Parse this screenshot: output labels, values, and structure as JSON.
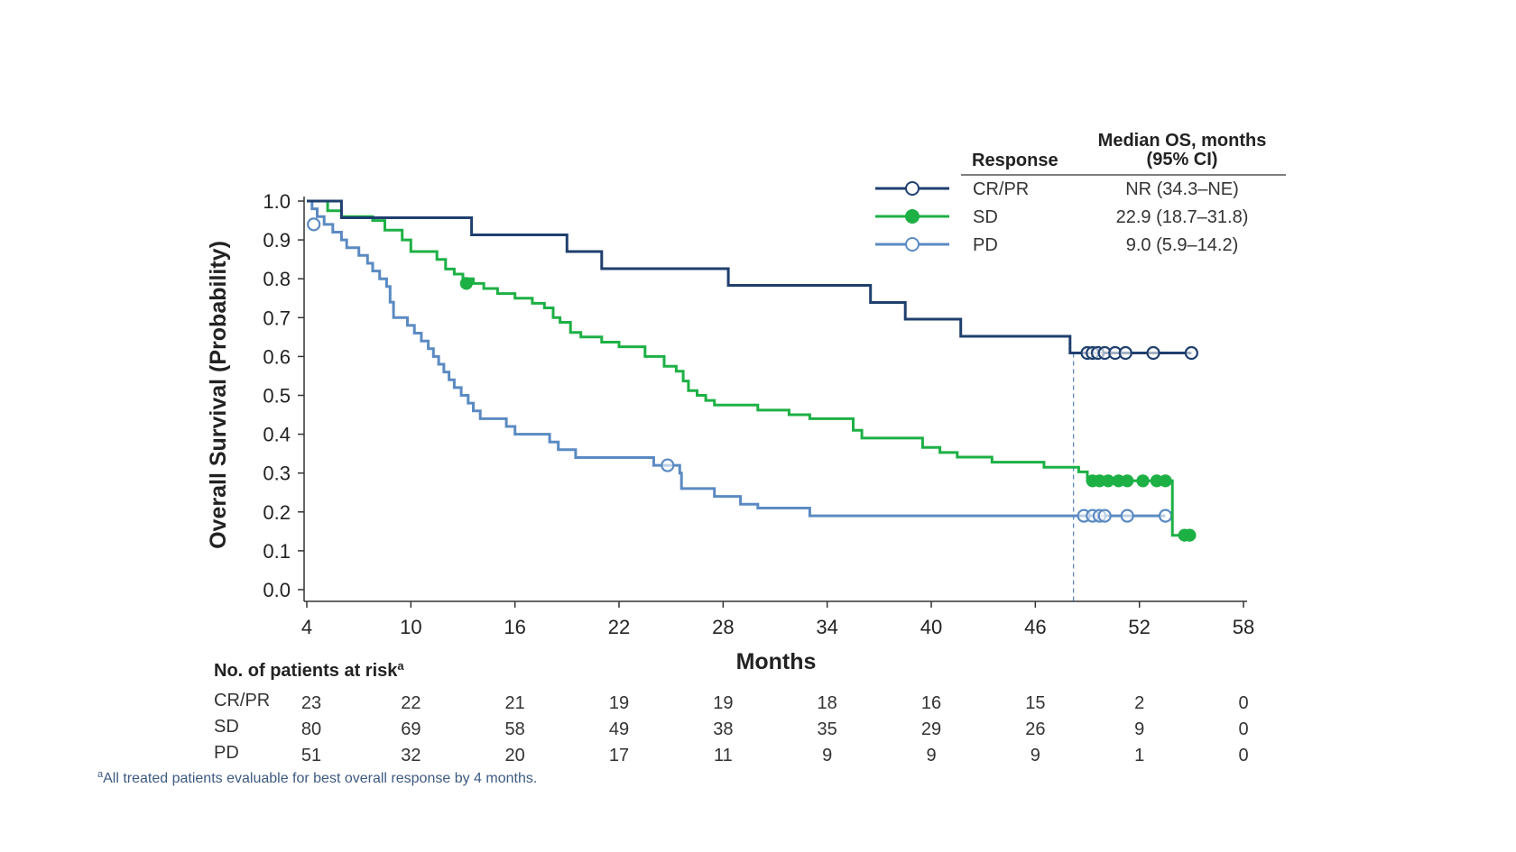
{
  "chart_data": {
    "type": "line",
    "subtype": "kaplan-meier",
    "ylabel": "Overall Survival (Probability)",
    "xlabel": "Months",
    "xlim": [
      4,
      58
    ],
    "ylim": [
      0,
      1
    ],
    "xticks": [
      4,
      10,
      16,
      22,
      28,
      34,
      40,
      46,
      52,
      58
    ],
    "yticks": [
      0.0,
      0.1,
      0.2,
      0.3,
      0.4,
      0.5,
      0.6,
      0.7,
      0.8,
      0.9,
      1.0
    ],
    "reference_line": {
      "x": 48.2,
      "style": "dashed"
    },
    "legend": {
      "placement": "top-right",
      "header_response": "Response",
      "header_median_line1": "Median OS, months",
      "header_median_line2": "(95% CI)"
    },
    "series": [
      {
        "name": "CR/PR",
        "color": "#1f3f6e",
        "marker": "open-circle",
        "median_os": "NR (34.3–NE)",
        "steps": [
          [
            4,
            1.0
          ],
          [
            6,
            0.957
          ],
          [
            13.5,
            0.913
          ],
          [
            19,
            0.87
          ],
          [
            21,
            0.826
          ],
          [
            28.3,
            0.783
          ],
          [
            36.5,
            0.739
          ],
          [
            38.5,
            0.696
          ],
          [
            41.7,
            0.652
          ],
          [
            48,
            0.609
          ],
          [
            55,
            0.609
          ]
        ],
        "censored": [
          [
            49,
            0.609
          ],
          [
            49.3,
            0.609
          ],
          [
            49.6,
            0.609
          ],
          [
            50,
            0.609
          ],
          [
            50.6,
            0.609
          ],
          [
            51.2,
            0.609
          ],
          [
            52.8,
            0.609
          ],
          [
            55,
            0.609
          ]
        ]
      },
      {
        "name": "SD",
        "color": "#1db045",
        "marker": "filled-circle",
        "median_os": "22.9 (18.7–31.8)",
        "steps": [
          [
            4,
            1.0
          ],
          [
            5.2,
            0.975
          ],
          [
            6,
            0.96
          ],
          [
            7.8,
            0.95
          ],
          [
            8.5,
            0.925
          ],
          [
            9.5,
            0.9
          ],
          [
            10,
            0.87
          ],
          [
            11.5,
            0.85
          ],
          [
            12,
            0.825
          ],
          [
            12.5,
            0.812
          ],
          [
            13,
            0.8
          ],
          [
            13.6,
            0.788
          ],
          [
            14.2,
            0.775
          ],
          [
            15,
            0.762
          ],
          [
            16,
            0.75
          ],
          [
            17,
            0.737
          ],
          [
            17.7,
            0.725
          ],
          [
            18.2,
            0.7
          ],
          [
            18.6,
            0.688
          ],
          [
            19.2,
            0.662
          ],
          [
            19.8,
            0.65
          ],
          [
            21,
            0.637
          ],
          [
            22,
            0.625
          ],
          [
            23.5,
            0.6
          ],
          [
            24.6,
            0.575
          ],
          [
            25.3,
            0.562
          ],
          [
            25.7,
            0.537
          ],
          [
            26,
            0.512
          ],
          [
            26.5,
            0.5
          ],
          [
            27,
            0.487
          ],
          [
            27.5,
            0.475
          ],
          [
            30,
            0.462
          ],
          [
            31.8,
            0.45
          ],
          [
            33,
            0.44
          ],
          [
            35.5,
            0.41
          ],
          [
            36,
            0.39
          ],
          [
            39.5,
            0.366
          ],
          [
            40.5,
            0.353
          ],
          [
            41.5,
            0.341
          ],
          [
            43.5,
            0.328
          ],
          [
            46.5,
            0.315
          ],
          [
            48.5,
            0.303
          ],
          [
            49,
            0.28
          ],
          [
            53.8,
            0.28
          ],
          [
            53.9,
            0.14
          ],
          [
            55,
            0.14
          ]
        ],
        "censored": [
          [
            13.2,
            0.788
          ],
          [
            49.3,
            0.28
          ],
          [
            49.7,
            0.28
          ],
          [
            50.2,
            0.28
          ],
          [
            50.8,
            0.28
          ],
          [
            51.3,
            0.28
          ],
          [
            52.2,
            0.28
          ],
          [
            53,
            0.28
          ],
          [
            53.5,
            0.28
          ],
          [
            54.6,
            0.14
          ],
          [
            54.9,
            0.14
          ]
        ]
      },
      {
        "name": "PD",
        "color": "#5b8ac2",
        "marker": "open-circle",
        "median_os": "9.0 (5.9–14.2)",
        "steps": [
          [
            4,
            1.0
          ],
          [
            4.3,
            0.98
          ],
          [
            4.6,
            0.96
          ],
          [
            5,
            0.94
          ],
          [
            5.5,
            0.92
          ],
          [
            6,
            0.9
          ],
          [
            6.3,
            0.88
          ],
          [
            7,
            0.86
          ],
          [
            7.5,
            0.84
          ],
          [
            7.8,
            0.82
          ],
          [
            8.2,
            0.8
          ],
          [
            8.6,
            0.78
          ],
          [
            8.8,
            0.74
          ],
          [
            9,
            0.7
          ],
          [
            9.8,
            0.68
          ],
          [
            10.2,
            0.66
          ],
          [
            10.6,
            0.64
          ],
          [
            11,
            0.62
          ],
          [
            11.3,
            0.6
          ],
          [
            11.6,
            0.58
          ],
          [
            11.9,
            0.56
          ],
          [
            12.2,
            0.54
          ],
          [
            12.5,
            0.52
          ],
          [
            12.9,
            0.5
          ],
          [
            13.3,
            0.48
          ],
          [
            13.6,
            0.46
          ],
          [
            14,
            0.44
          ],
          [
            15.5,
            0.42
          ],
          [
            16,
            0.4
          ],
          [
            18,
            0.38
          ],
          [
            18.5,
            0.36
          ],
          [
            19.5,
            0.34
          ],
          [
            24,
            0.32
          ],
          [
            25.5,
            0.3
          ],
          [
            25.6,
            0.26
          ],
          [
            27.5,
            0.24
          ],
          [
            29,
            0.22
          ],
          [
            30,
            0.21
          ],
          [
            33,
            0.19
          ],
          [
            53.5,
            0.19
          ]
        ],
        "censored": [
          [
            4.4,
            0.94
          ],
          [
            24.8,
            0.32
          ],
          [
            48.8,
            0.19
          ],
          [
            49.3,
            0.19
          ],
          [
            49.7,
            0.19
          ],
          [
            50,
            0.19
          ],
          [
            51.3,
            0.19
          ],
          [
            53.5,
            0.19
          ]
        ]
      }
    ],
    "risk_table": {
      "title": "No. of patients at risk",
      "title_sup": "a",
      "times": [
        4,
        10,
        16,
        22,
        28,
        34,
        40,
        46,
        52,
        58
      ],
      "rows": [
        {
          "name": "CR/PR",
          "values": [
            "23",
            "22",
            "21",
            "19",
            "19",
            "18",
            "16",
            "15",
            "2",
            "0"
          ]
        },
        {
          "name": "SD",
          "values": [
            "80",
            "69",
            "58",
            "49",
            "38",
            "35",
            "29",
            "26",
            "9",
            "0"
          ]
        },
        {
          "name": "PD",
          "values": [
            "51",
            "32",
            "20",
            "17",
            "11",
            "9",
            "9",
            "9",
            "1",
            "0"
          ]
        }
      ]
    },
    "footnote_mark": "a",
    "footnote": "All treated patients evaluable for best overall response by 4 months."
  }
}
